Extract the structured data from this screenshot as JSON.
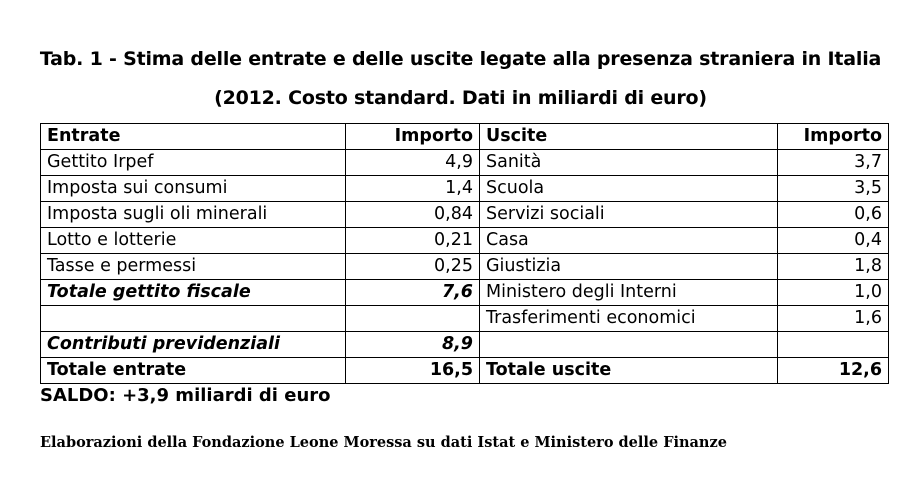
{
  "title_line1": "Tab. 1 - Stima delle entrate e delle uscite legate alla presenza straniera in Italia",
  "title_line2": "(2012. Costo standard. Dati in miliardi di euro)",
  "headers": [
    "Entrate",
    "Importo",
    "Uscite",
    "Importo"
  ],
  "rows": [
    [
      "Gettito Irpef",
      "4,9",
      "Sanità",
      "3,7"
    ],
    [
      "Imposta sui consumi",
      "1,4",
      "Scuola",
      "3,5"
    ],
    [
      "Imposta sugli oli minerali",
      "0,84",
      "Servizi sociali",
      "0,6"
    ],
    [
      "Lotto e lotterie",
      "0,21",
      "Casa",
      "0,4"
    ],
    [
      "Tasse e permessi",
      "0,25",
      "Giustizia",
      "1,8"
    ],
    [
      "Totale gettito fiscale",
      "7,6",
      "Ministero degli Interni",
      "1,0"
    ],
    [
      "",
      "",
      "Trasferimenti economici",
      "1,6"
    ],
    [
      "Contributi previdenziali",
      "8,9",
      "",
      ""
    ],
    [
      "Totale entrate",
      "16,5",
      "Totale uscite",
      "12,6"
    ]
  ],
  "saldo": "SALDO: +3,9 miliardi di euro",
  "source": "Elaborazioni della Fondazione Leone Moressa su dati Istat e Ministero delle Finanze"
}
